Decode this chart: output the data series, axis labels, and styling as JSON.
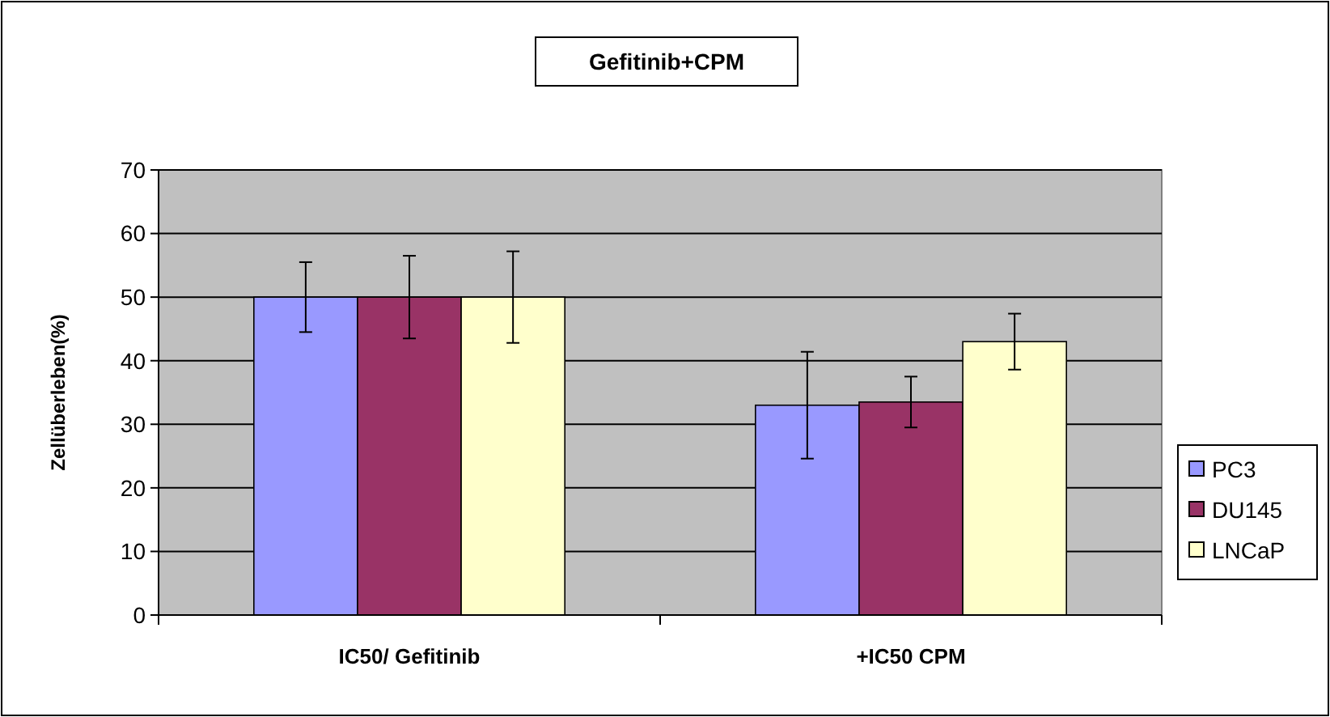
{
  "chart_data": {
    "type": "bar",
    "title": "Gefitinib+CPM",
    "ylabel": "Zellüberleben(%)",
    "categories": [
      "IC50/ Gefitinib",
      "+IC50 CPM"
    ],
    "series": [
      {
        "name": "PC3",
        "color": "#9999ff",
        "values": [
          50,
          33
        ],
        "errors": [
          5.5,
          8.4
        ]
      },
      {
        "name": "DU145",
        "color": "#993366",
        "values": [
          50,
          33.5
        ],
        "errors": [
          6.5,
          4
        ]
      },
      {
        "name": "LNCaP",
        "color": "#ffffcc",
        "values": [
          50,
          43
        ],
        "errors": [
          7.2,
          4.4
        ]
      }
    ],
    "ylim": [
      0,
      70
    ],
    "yticks": [
      0,
      10,
      20,
      30,
      40,
      50,
      60,
      70
    ],
    "grid": "y",
    "legend": "right"
  }
}
